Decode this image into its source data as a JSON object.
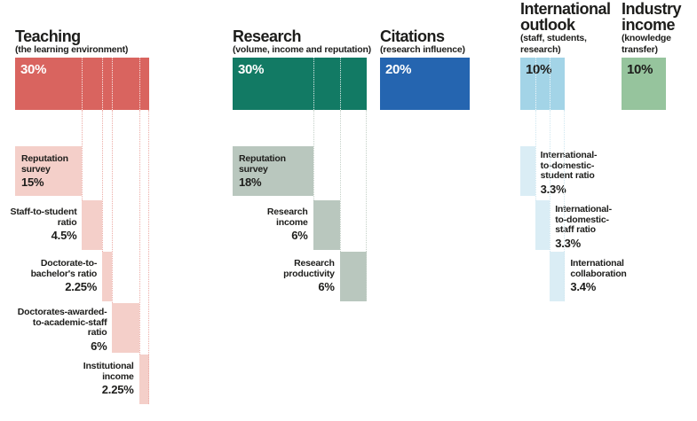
{
  "chart_data": {
    "type": "bar",
    "title": "",
    "unit": "%",
    "total": 100,
    "legend_position": "none",
    "grid": false,
    "categories": [
      {
        "name": "Teaching",
        "title_lines": [
          "Teaching"
        ],
        "subtitle_lines": [
          "(the learning environment)"
        ],
        "weight": 30,
        "weight_label": "30%",
        "colors": {
          "bar": "#d9645f",
          "sub": "#f4cfc9",
          "line": "#ecaca6",
          "bar_label": "#ffffff"
        },
        "sub_metrics": [
          {
            "label_lines": [
              "Reputation",
              "survey"
            ],
            "value": 15,
            "value_label": "15%",
            "label_position": "inside"
          },
          {
            "label_lines": [
              "Staff-to-student",
              "ratio"
            ],
            "value": 4.5,
            "value_label": "4.5%",
            "label_position": "left"
          },
          {
            "label_lines": [
              "Doctorate-to-",
              "bachelor's ratio"
            ],
            "value": 2.25,
            "value_label": "2.25%",
            "label_position": "left"
          },
          {
            "label_lines": [
              "Doctorates-awarded-",
              "to-academic-staff",
              "ratio"
            ],
            "value": 6,
            "value_label": "6%",
            "label_position": "left"
          },
          {
            "label_lines": [
              "Institutional",
              "income"
            ],
            "value": 2.25,
            "value_label": "2.25%",
            "label_position": "left"
          }
        ]
      },
      {
        "name": "Research",
        "title_lines": [
          "Research"
        ],
        "subtitle_lines": [
          "(volume, income and reputation)"
        ],
        "weight": 30,
        "weight_label": "30%",
        "colors": {
          "bar": "#127a64",
          "sub": "#b9c7be",
          "line": "#c4d0c7",
          "bar_label": "#ffffff"
        },
        "sub_metrics": [
          {
            "label_lines": [
              "Reputation",
              "survey"
            ],
            "value": 18,
            "value_label": "18%",
            "label_position": "inside"
          },
          {
            "label_lines": [
              "Research",
              "income"
            ],
            "value": 6,
            "value_label": "6%",
            "label_position": "left"
          },
          {
            "label_lines": [
              "Research",
              "productivity"
            ],
            "value": 6,
            "value_label": "6%",
            "label_position": "left"
          }
        ]
      },
      {
        "name": "Citations",
        "title_lines": [
          "Citations"
        ],
        "subtitle_lines": [
          "(research influence)"
        ],
        "weight": 20,
        "weight_label": "20%",
        "colors": {
          "bar": "#2565b0",
          "sub": "",
          "line": "",
          "bar_label": "#ffffff"
        },
        "sub_metrics": []
      },
      {
        "name": "International outlook",
        "title_lines": [
          "International",
          "outlook"
        ],
        "subtitle_lines": [
          "(staff, students,",
          "research)"
        ],
        "weight": 10,
        "weight_label": "10%",
        "colors": {
          "bar": "#a3d4e7",
          "sub": "#daedf5",
          "line": "#cfe7f0",
          "bar_label": "#1d1d1b"
        },
        "sub_metrics": [
          {
            "label_lines": [
              "International-",
              "to-domestic-",
              "student ratio"
            ],
            "value": 3.3,
            "value_label": "3.3%",
            "label_position": "right"
          },
          {
            "label_lines": [
              "International-",
              "to-domestic-",
              "staff ratio"
            ],
            "value": 3.3,
            "value_label": "3.3%",
            "label_position": "right"
          },
          {
            "label_lines": [
              "International",
              "collaboration"
            ],
            "value": 3.4,
            "value_label": "3.4%",
            "label_position": "right"
          }
        ]
      },
      {
        "name": "Industry income",
        "title_lines": [
          "Industry",
          "income"
        ],
        "subtitle_lines": [
          "(knowledge",
          "transfer)"
        ],
        "weight": 10,
        "weight_label": "10%",
        "colors": {
          "bar": "#96c49d",
          "sub": "",
          "line": "",
          "bar_label": "#1d1d1b"
        },
        "sub_metrics": []
      }
    ]
  }
}
